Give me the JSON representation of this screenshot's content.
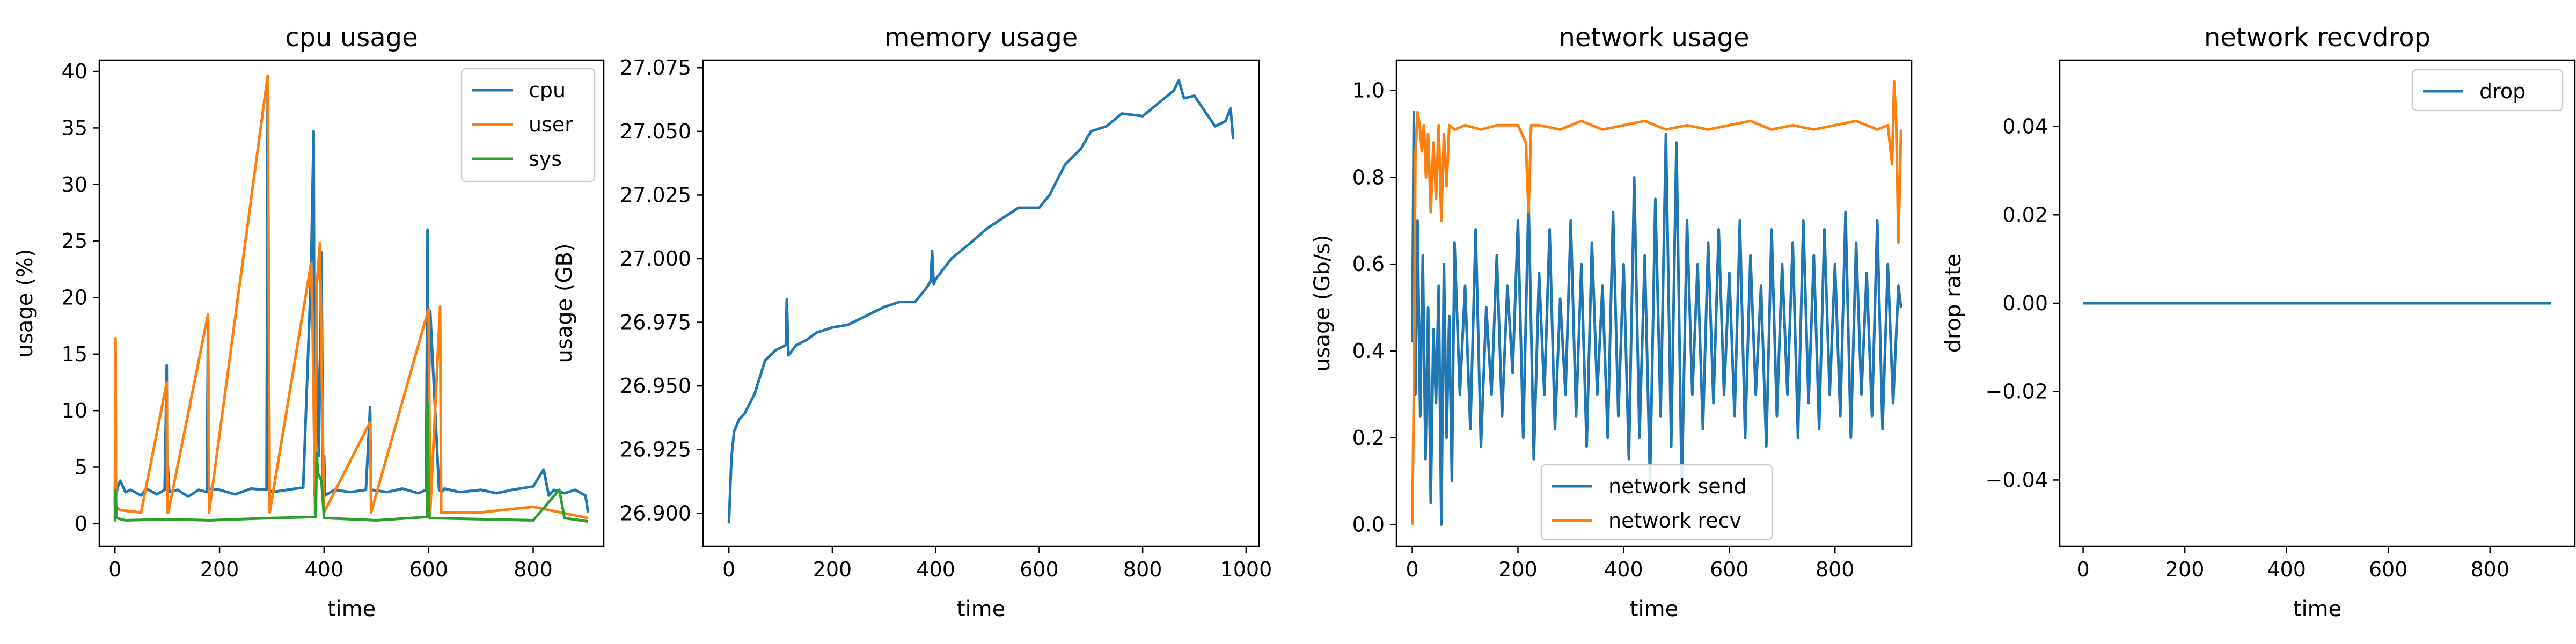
{
  "chart_data": [
    {
      "type": "line",
      "title": "cpu usage",
      "xlabel": "time",
      "ylabel": "usage (%)",
      "xlim": [
        -30,
        935
      ],
      "ylim": [
        -2,
        41
      ],
      "xticks": [
        0,
        200,
        400,
        600,
        800
      ],
      "xtick_labels": [
        "0",
        "200",
        "400",
        "600",
        "800"
      ],
      "yticks": [
        0,
        5,
        10,
        15,
        20,
        25,
        30,
        35,
        40
      ],
      "ytick_labels": [
        "0",
        "5",
        "10",
        "15",
        "20",
        "25",
        "30",
        "35",
        "40"
      ],
      "legend": "top-right",
      "series": [
        {
          "name": "cpu",
          "color": "#1f77b4",
          "x": [
            0,
            1,
            2,
            5,
            10,
            20,
            30,
            50,
            60,
            80,
            95,
            99,
            100,
            101,
            104,
            120,
            140,
            160,
            176,
            178,
            180,
            200,
            230,
            260,
            290,
            292,
            295,
            300,
            330,
            360,
            375,
            380,
            382,
            385,
            390,
            395,
            398,
            400,
            402,
            420,
            450,
            480,
            488,
            490,
            492,
            520,
            550,
            580,
            595,
            598,
            600,
            603,
            620,
            625,
            630,
            660,
            700,
            730,
            760,
            800,
            820,
            830,
            840,
            860,
            880,
            900,
            905
          ],
          "y": [
            1.5,
            16.0,
            2.5,
            3.2,
            3.8,
            2.8,
            3.0,
            2.5,
            3.1,
            2.6,
            3.0,
            14.0,
            3.0,
            5.2,
            2.8,
            3.0,
            2.4,
            3.0,
            2.8,
            18.0,
            3.1,
            3.0,
            2.6,
            3.1,
            3.0,
            38.0,
            3.0,
            2.8,
            3.0,
            3.2,
            22.0,
            34.7,
            2.5,
            18.0,
            6.0,
            24.0,
            3.0,
            6.0,
            2.5,
            3.0,
            2.8,
            3.0,
            10.3,
            2.8,
            3.0,
            2.8,
            3.1,
            2.7,
            3.0,
            26.0,
            10.5,
            18.8,
            3.0,
            2.8,
            3.1,
            2.8,
            3.0,
            2.7,
            3.0,
            3.3,
            4.8,
            2.5,
            3.0,
            2.7,
            3.0,
            2.5,
            1.0
          ]
        },
        {
          "name": "user",
          "color": "#ff7f0e",
          "x": [
            0,
            1,
            2,
            10,
            50,
            99,
            100,
            102,
            178,
            180,
            292,
            293,
            296,
            375,
            378,
            383,
            386,
            392,
            396,
            400,
            488,
            490,
            600,
            603,
            622,
            624,
            700,
            800,
            905
          ],
          "y": [
            0.5,
            16.4,
            1.5,
            1.2,
            1.0,
            12.5,
            1.0,
            1.0,
            18.5,
            1.0,
            39.6,
            33.0,
            1.0,
            23.0,
            18.0,
            1.0,
            21.0,
            24.8,
            12.0,
            1.0,
            9.0,
            1.0,
            19.0,
            1.0,
            19.2,
            1.0,
            1.0,
            1.5,
            0.5
          ]
        },
        {
          "name": "sys",
          "color": "#2ca02c",
          "x": [
            0,
            1,
            3,
            20,
            100,
            180,
            300,
            384,
            386,
            388,
            395,
            400,
            500,
            597,
            598,
            600,
            602,
            700,
            800,
            850,
            860,
            905
          ],
          "y": [
            0.2,
            3.0,
            0.5,
            0.3,
            0.4,
            0.3,
            0.5,
            0.6,
            6.2,
            4.5,
            3.8,
            0.5,
            0.3,
            0.6,
            10.7,
            2.0,
            0.5,
            0.4,
            0.3,
            3.0,
            0.5,
            0.2
          ]
        }
      ]
    },
    {
      "type": "line",
      "title": "memory usage",
      "xlabel": "time",
      "ylabel": "usage (GB)",
      "xlim": [
        -50,
        1025
      ],
      "ylim": [
        26.887,
        27.078
      ],
      "xticks": [
        0,
        200,
        400,
        600,
        800,
        1000
      ],
      "xtick_labels": [
        "0",
        "200",
        "400",
        "600",
        "800",
        "1000"
      ],
      "yticks": [
        26.9,
        26.925,
        26.95,
        26.975,
        27.0,
        27.025,
        27.05,
        27.075
      ],
      "ytick_labels": [
        "26.900",
        "26.925",
        "26.950",
        "26.975",
        "27.000",
        "27.025",
        "27.050",
        "27.075"
      ],
      "series": [
        {
          "name": "",
          "color": "#1f77b4",
          "x": [
            0,
            5,
            10,
            20,
            30,
            50,
            70,
            90,
            100,
            110,
            112,
            115,
            130,
            150,
            170,
            200,
            230,
            260,
            300,
            330,
            360,
            380,
            390,
            393,
            396,
            400,
            430,
            460,
            500,
            530,
            560,
            600,
            620,
            650,
            680,
            700,
            730,
            760,
            800,
            830,
            860,
            870,
            880,
            900,
            920,
            940,
            960,
            970,
            975
          ],
          "y": [
            26.896,
            26.922,
            26.932,
            26.937,
            26.939,
            26.947,
            26.96,
            26.964,
            26.965,
            26.966,
            26.984,
            26.962,
            26.966,
            26.968,
            26.971,
            26.973,
            26.974,
            26.977,
            26.981,
            26.983,
            26.983,
            26.988,
            26.991,
            27.003,
            26.99,
            26.992,
            27.0,
            27.005,
            27.012,
            27.016,
            27.02,
            27.02,
            27.025,
            27.037,
            27.043,
            27.05,
            27.052,
            27.057,
            27.056,
            27.061,
            27.066,
            27.07,
            27.063,
            27.064,
            27.058,
            27.052,
            27.054,
            27.059,
            27.047
          ]
        }
      ]
    },
    {
      "type": "line",
      "title": "network usage",
      "xlabel": "time",
      "ylabel": "usage (Gb/s)",
      "xlim": [
        -30,
        945
      ],
      "ylim": [
        -0.05,
        1.07
      ],
      "xticks": [
        0,
        200,
        400,
        600,
        800
      ],
      "xtick_labels": [
        "0",
        "200",
        "400",
        "600",
        "800"
      ],
      "yticks": [
        0.0,
        0.2,
        0.4,
        0.6,
        0.8,
        1.0
      ],
      "ytick_labels": [
        "0.0",
        "0.2",
        "0.4",
        "0.6",
        "0.8",
        "1.0"
      ],
      "legend": "bottom-center",
      "series": [
        {
          "name": "network send",
          "color": "#1f77b4",
          "x": [
            0,
            3,
            6,
            10,
            15,
            20,
            25,
            30,
            35,
            40,
            45,
            50,
            55,
            60,
            65,
            70,
            75,
            80,
            90,
            100,
            110,
            120,
            130,
            140,
            150,
            160,
            170,
            180,
            190,
            200,
            210,
            220,
            230,
            240,
            250,
            260,
            270,
            280,
            290,
            300,
            310,
            320,
            330,
            340,
            350,
            360,
            370,
            380,
            390,
            400,
            410,
            420,
            430,
            440,
            450,
            460,
            470,
            480,
            490,
            500,
            510,
            520,
            530,
            540,
            550,
            560,
            570,
            580,
            590,
            600,
            610,
            620,
            630,
            640,
            650,
            660,
            670,
            680,
            690,
            700,
            710,
            720,
            730,
            740,
            750,
            760,
            770,
            780,
            790,
            800,
            810,
            820,
            830,
            840,
            850,
            860,
            870,
            880,
            890,
            900,
            910,
            920,
            925
          ],
          "y": [
            0.42,
            0.95,
            0.3,
            0.7,
            0.25,
            0.62,
            0.15,
            0.5,
            0.05,
            0.45,
            0.28,
            0.55,
            0.0,
            0.6,
            0.2,
            0.48,
            0.1,
            0.65,
            0.3,
            0.55,
            0.22,
            0.68,
            0.18,
            0.5,
            0.3,
            0.62,
            0.25,
            0.55,
            0.35,
            0.7,
            0.2,
            0.75,
            0.15,
            0.58,
            0.3,
            0.68,
            0.22,
            0.52,
            0.3,
            0.7,
            0.25,
            0.6,
            0.18,
            0.65,
            0.3,
            0.55,
            0.2,
            0.72,
            0.25,
            0.6,
            0.15,
            0.8,
            0.2,
            0.62,
            0.1,
            0.75,
            0.25,
            0.9,
            0.18,
            0.88,
            0.08,
            0.7,
            0.3,
            0.6,
            0.22,
            0.65,
            0.28,
            0.68,
            0.3,
            0.58,
            0.25,
            0.7,
            0.2,
            0.62,
            0.3,
            0.55,
            0.18,
            0.68,
            0.25,
            0.6,
            0.3,
            0.65,
            0.2,
            0.7,
            0.28,
            0.62,
            0.22,
            0.68,
            0.3,
            0.6,
            0.25,
            0.72,
            0.2,
            0.65,
            0.3,
            0.58,
            0.25,
            0.7,
            0.22,
            0.6,
            0.28,
            0.55,
            0.5
          ]
        },
        {
          "name": "network recv",
          "color": "#ff7f0e",
          "x": [
            0,
            3,
            6,
            10,
            14,
            18,
            22,
            26,
            30,
            35,
            40,
            45,
            50,
            55,
            60,
            65,
            70,
            80,
            100,
            130,
            160,
            200,
            215,
            220,
            225,
            240,
            280,
            320,
            360,
            400,
            440,
            480,
            520,
            560,
            600,
            640,
            680,
            720,
            760,
            800,
            840,
            880,
            900,
            908,
            912,
            916,
            920,
            925
          ],
          "y": [
            0.0,
            0.3,
            0.85,
            0.95,
            0.92,
            0.86,
            0.92,
            0.8,
            0.9,
            0.72,
            0.88,
            0.75,
            0.92,
            0.7,
            0.9,
            0.78,
            0.92,
            0.91,
            0.92,
            0.91,
            0.92,
            0.92,
            0.88,
            0.72,
            0.92,
            0.92,
            0.91,
            0.93,
            0.91,
            0.92,
            0.93,
            0.91,
            0.92,
            0.91,
            0.92,
            0.93,
            0.91,
            0.92,
            0.91,
            0.92,
            0.93,
            0.91,
            0.92,
            0.83,
            1.02,
            0.92,
            0.65,
            0.91
          ]
        }
      ]
    },
    {
      "type": "line",
      "title": "network recvdrop",
      "xlabel": "time",
      "ylabel": "drop rate",
      "xlim": [
        -46,
        967
      ],
      "ylim": [
        -0.055,
        0.055
      ],
      "xticks": [
        0,
        200,
        400,
        600,
        800
      ],
      "xtick_labels": [
        "0",
        "200",
        "400",
        "600",
        "800"
      ],
      "yticks": [
        -0.04,
        -0.02,
        0.0,
        0.02,
        0.04
      ],
      "ytick_labels": [
        "−0.04",
        "−0.02",
        "0.00",
        "0.02",
        "0.04"
      ],
      "legend": "top-right",
      "series": [
        {
          "name": "drop",
          "color": "#1f77b4",
          "x": [
            0,
            920
          ],
          "y": [
            0.0,
            0.0
          ]
        }
      ]
    }
  ]
}
